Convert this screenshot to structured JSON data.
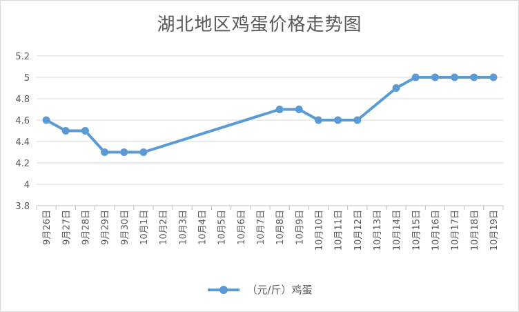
{
  "chart_data": {
    "type": "line",
    "title": "湖北地区鸡蛋价格走势图",
    "categories": [
      "9月26日",
      "9月27日",
      "9月28日",
      "9月29日",
      "9月30日",
      "10月1日",
      "10月2日",
      "10月3日",
      "10月4日",
      "10月5日",
      "10月6日",
      "10月7日",
      "10月8日",
      "10月9日",
      "10月10日",
      "10月11日",
      "10月12日",
      "10月13日",
      "10月14日",
      "10月15日",
      "10月16日",
      "10月17日",
      "10月18日",
      "10月19日"
    ],
    "y_ticks": [
      "3.8",
      "4",
      "4.2",
      "4.4",
      "4.6",
      "4.8",
      "5",
      "5.2"
    ],
    "ylim": [
      3.8,
      5.2
    ],
    "grid": true,
    "legend_position": "bottom",
    "series": [
      {
        "name": "（元/斤）鸡蛋",
        "color": "#5b9bd5",
        "values": [
          4.6,
          4.5,
          4.5,
          4.3,
          4.3,
          4.3,
          null,
          null,
          null,
          null,
          null,
          null,
          4.7,
          4.7,
          4.6,
          4.6,
          4.6,
          null,
          4.9,
          5.0,
          5.0,
          5.0,
          5.0,
          5.0
        ]
      }
    ]
  }
}
